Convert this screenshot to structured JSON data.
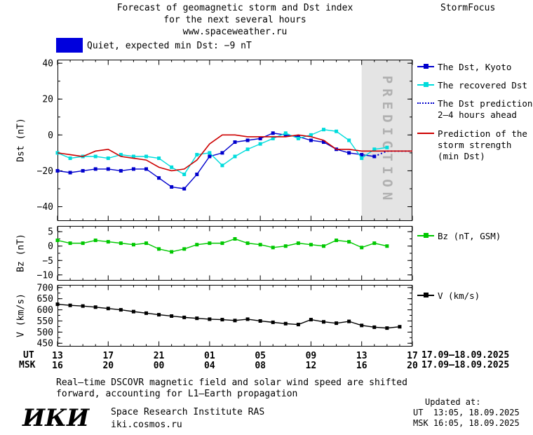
{
  "header": {
    "title_line1": "Forecast of geomagnetic storm and Dst index",
    "title_line2": "for the next several hours",
    "title_line3": "www.spaceweather.ru",
    "brand": "StormFocus"
  },
  "status": {
    "label": "Quiet, expected min Dst: −9 nT",
    "color": "#0000dd"
  },
  "legend": {
    "dst": [
      {
        "label": "The Dst, Kyoto",
        "color": "#0000cd",
        "line": "solid",
        "marker": "square"
      },
      {
        "label": "The recovered Dst",
        "color": "#00dcdc",
        "line": "solid",
        "marker": "square"
      },
      {
        "label": "The Dst prediction\n2—4 hours ahead",
        "color": "#0000cd",
        "line": "dotted",
        "marker": "none"
      },
      {
        "label": "Prediction of the\nstorm strength\n(min Dst)",
        "color": "#cd0000",
        "line": "solid",
        "marker": "none"
      }
    ],
    "bz": {
      "label": "Bz (nT, GSM)",
      "color": "#00c800",
      "line": "solid",
      "marker": "square"
    },
    "v": {
      "label": "V (km/s)",
      "color": "#000000",
      "line": "solid",
      "marker": "square"
    }
  },
  "xaxis": {
    "ut_label": "UT",
    "msk_label": "MSK",
    "ut_ticks": [
      "13",
      "17",
      "21",
      "01",
      "05",
      "09",
      "13",
      "17"
    ],
    "msk_ticks": [
      "16",
      "20",
      "00",
      "04",
      "08",
      "12",
      "16",
      "20"
    ],
    "ut_dates": "17.09—18.09.2025",
    "msk_dates": "17.09—18.09.2025"
  },
  "footer": {
    "note_line1": "Real—time DSCOVR magnetic field and solar wind speed are shifted",
    "note_line2": "forward, accounting for L1—Earth propagation",
    "updated_label": "Updated at:",
    "updated_ut": "UT  13:05, 18.09.2025",
    "updated_msk": "MSK 16:05, 18.09.2025",
    "logo": "ИКИ",
    "institute": "Space Research Institute RAS",
    "site": "iki.cosmos.ru"
  },
  "chart_data": [
    {
      "type": "line",
      "panel": "dst",
      "ylabel": "Dst (nT)",
      "ylim": [
        -48,
        42
      ],
      "yticks": [
        40,
        20,
        0,
        -20,
        -40
      ],
      "yminor": 10,
      "xlim": [
        0,
        28
      ],
      "xticks_hours": [
        0,
        4,
        8,
        12,
        16,
        20,
        24,
        28
      ],
      "xminor": 1,
      "prediction_band": [
        24,
        28
      ],
      "prediction_label": "PREDICTION",
      "series": [
        {
          "name": "The Dst, Kyoto",
          "color": "#0000cd",
          "line": "solid",
          "marker": "square",
          "width": 1.4,
          "x0": 0,
          "dx": 1,
          "y": [
            -20,
            -21,
            -20,
            -19,
            -19,
            -20,
            -19,
            -19,
            -24,
            -29,
            -30,
            -22,
            -12,
            -10,
            -4,
            -3,
            -2,
            1,
            0,
            -1,
            -3,
            -4,
            -8,
            -10,
            -11,
            -12
          ]
        },
        {
          "name": "The recovered Dst",
          "color": "#00dcdc",
          "line": "solid",
          "marker": "square",
          "width": 1.4,
          "x0": 0,
          "dx": 1,
          "y": [
            -10,
            -13,
            -12,
            -12,
            -13,
            -11,
            -12,
            -12,
            -13,
            -18,
            -22,
            -11,
            -10,
            -17,
            -12,
            -8,
            -5,
            -2,
            1,
            -2,
            0,
            3,
            2,
            -3,
            -13,
            -8,
            -7
          ]
        },
        {
          "name": "The Dst prediction 2—4 hours ahead",
          "color": "#0000cd",
          "line": "dotted",
          "marker": "none",
          "width": 2,
          "x": [
            25,
            26,
            28
          ],
          "y": [
            -12,
            -9,
            -9
          ]
        },
        {
          "name": "Prediction of the storm strength (min Dst)",
          "color": "#cd0000",
          "line": "solid",
          "marker": "none",
          "width": 1.6,
          "x0": 0,
          "dx": 1,
          "y": [
            -10,
            -11,
            -12,
            -9,
            -8,
            -12,
            -13,
            -14,
            -18,
            -20,
            -19,
            -14,
            -5,
            0,
            0,
            -1,
            -1,
            -1,
            -1,
            0,
            -1,
            -3,
            -8,
            -8,
            -9,
            -9,
            -9,
            -9,
            -9
          ]
        }
      ]
    },
    {
      "type": "line",
      "panel": "bz",
      "ylabel": "Bz (nT)",
      "ylim": [
        -12,
        7
      ],
      "yticks": [
        5,
        0,
        -5,
        -10
      ],
      "yminor": 2.5,
      "xlim": [
        0,
        28
      ],
      "xticks_hours": [
        0,
        4,
        8,
        12,
        16,
        20,
        24,
        28
      ],
      "xminor": 1,
      "series": [
        {
          "name": "Bz (nT, GSM)",
          "color": "#00c800",
          "line": "solid",
          "marker": "square",
          "width": 1.4,
          "x0": 0,
          "dx": 1,
          "y": [
            2,
            1,
            1,
            2,
            1.5,
            1,
            0.5,
            1,
            -1,
            -2,
            -1,
            0.5,
            1,
            1,
            2.5,
            1,
            0.5,
            -0.5,
            0,
            1,
            0.5,
            0,
            2,
            1.5,
            -0.5,
            1,
            0
          ]
        }
      ]
    },
    {
      "type": "line",
      "panel": "v",
      "ylabel": "V (km/s)",
      "ylim": [
        435,
        712
      ],
      "yticks": [
        700,
        650,
        600,
        550,
        500,
        450
      ],
      "yminor": 25,
      "xlim": [
        0,
        28
      ],
      "xticks_hours": [
        0,
        4,
        8,
        12,
        16,
        20,
        24,
        28
      ],
      "xminor": 1,
      "series": [
        {
          "name": "V (km/s)",
          "color": "#000000",
          "line": "solid",
          "marker": "square",
          "width": 1.4,
          "x0": 0,
          "dx": 1,
          "y": [
            625,
            620,
            617,
            612,
            606,
            600,
            592,
            585,
            578,
            572,
            566,
            562,
            558,
            556,
            552,
            558,
            550,
            544,
            538,
            534,
            556,
            546,
            540,
            548,
            530,
            522,
            518,
            524
          ]
        }
      ]
    }
  ]
}
